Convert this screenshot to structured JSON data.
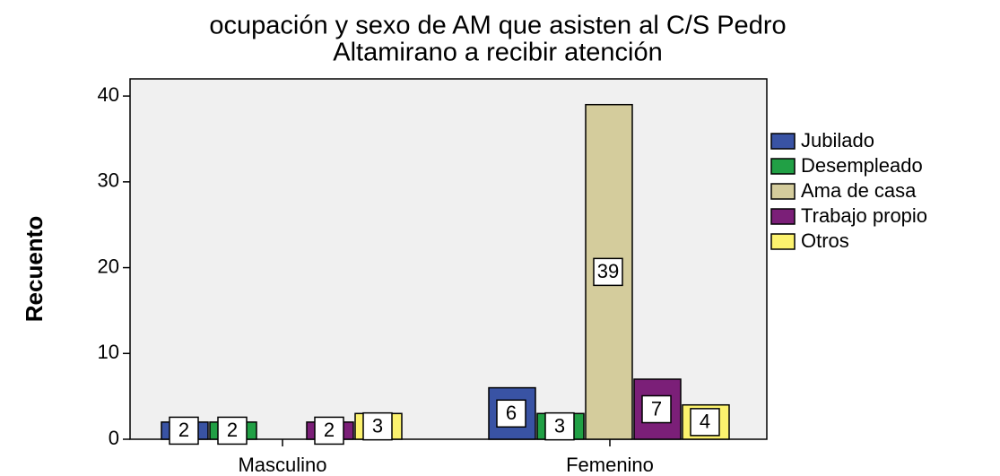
{
  "chart_data": {
    "type": "bar",
    "title": [
      "ocupación y sexo de AM que asisten al C/S Pedro",
      "Altamirano a recibir atención"
    ],
    "y_label": "Recuento",
    "categories": [
      "Masculino",
      "Femenino"
    ],
    "series": [
      {
        "name": "Jubilado",
        "color": "#3953a4",
        "values": [
          2,
          6
        ]
      },
      {
        "name": "Desempleado",
        "color": "#21a045",
        "values": [
          2,
          3
        ]
      },
      {
        "name": "Ama de casa",
        "color": "#d4cc9c",
        "values": [
          null,
          39
        ]
      },
      {
        "name": "Trabajo propio",
        "color": "#7b1f78",
        "values": [
          2,
          7
        ]
      },
      {
        "name": "Otros",
        "color": "#fcf26e",
        "values": [
          3,
          4
        ]
      }
    ],
    "ylim": [
      0,
      42
    ],
    "yticks": [
      0,
      10,
      20,
      30,
      40
    ],
    "legend": "right",
    "grid": false
  }
}
